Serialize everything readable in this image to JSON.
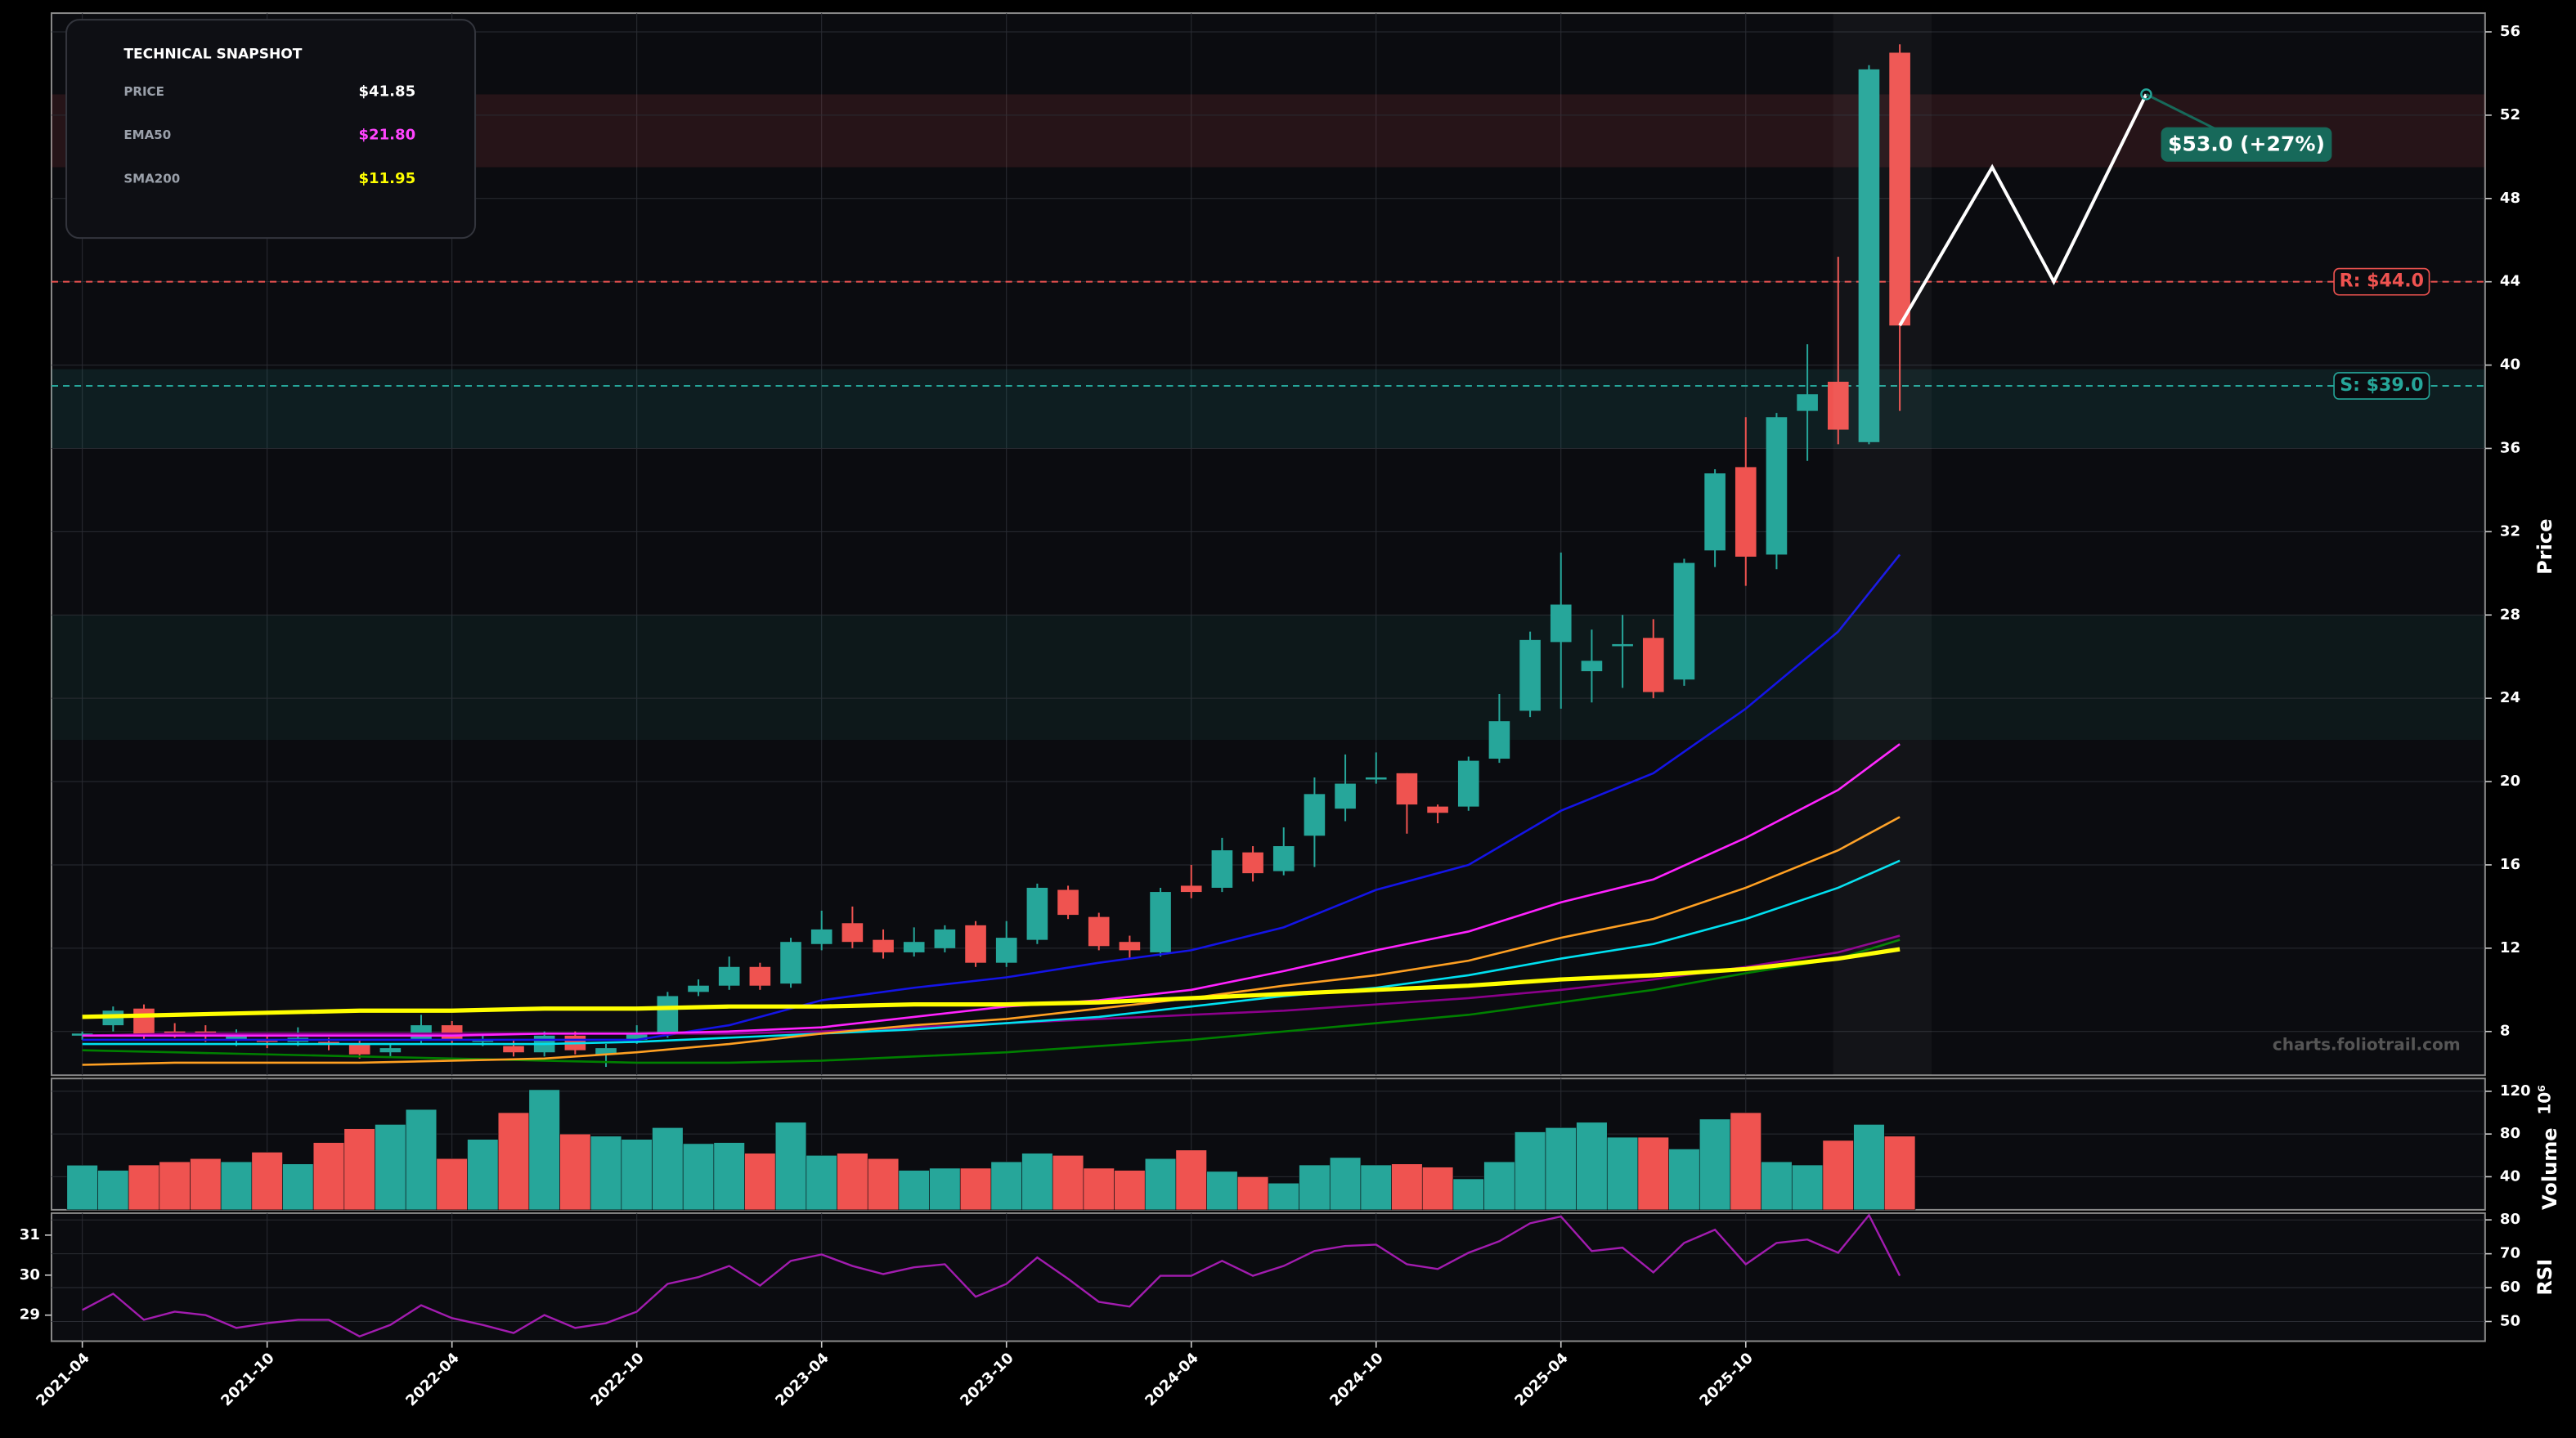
{
  "watermark": "charts.foliotrail.com",
  "snapshot": {
    "title": "TECHNICAL SNAPSHOT",
    "rows": [
      {
        "label": "PRICE",
        "value": "$41.85",
        "color": "#ffffff"
      },
      {
        "label": "EMA50",
        "value": "$21.80",
        "color": "#ff44ff"
      },
      {
        "label": "SMA200",
        "value": "$11.95",
        "color": "#ffff00"
      }
    ]
  },
  "chart_data": [
    {
      "type": "candlestick",
      "ylabel": "Price",
      "grid": true,
      "up_color": "#26a69a",
      "down_color": "#ef5350",
      "xlim": [
        "2021-03",
        "2027-10"
      ],
      "ylim": [
        5.9,
        56.9
      ],
      "yticks": [
        8,
        12,
        16,
        20,
        24,
        28,
        32,
        36,
        40,
        44,
        48,
        52,
        56
      ],
      "x": [
        "2021-04",
        "2021-05",
        "2021-06",
        "2021-07",
        "2021-08",
        "2021-09",
        "2021-10",
        "2021-11",
        "2021-12",
        "2022-01",
        "2022-02",
        "2022-03",
        "2022-04",
        "2022-05",
        "2022-06",
        "2022-07",
        "2022-08",
        "2022-09",
        "2022-10",
        "2022-11",
        "2022-12",
        "2023-01",
        "2023-02",
        "2023-03",
        "2023-04",
        "2023-05",
        "2023-06",
        "2023-07",
        "2023-08",
        "2023-09",
        "2023-10",
        "2023-11",
        "2023-12",
        "2024-01",
        "2024-02",
        "2024-03",
        "2024-04",
        "2024-05",
        "2024-06",
        "2024-07",
        "2024-08",
        "2024-09",
        "2024-10",
        "2024-11",
        "2024-12",
        "2025-01",
        "2025-02",
        "2025-03",
        "2025-04",
        "2025-05",
        "2025-06",
        "2025-07",
        "2025-08",
        "2025-09",
        "2025-10",
        "2025-11",
        "2025-12",
        "2026-01",
        "2026-02",
        "2026-03"
      ],
      "open": [
        7.8,
        8.3,
        9.1,
        8.0,
        8.0,
        7.6,
        7.6,
        7.5,
        7.5,
        7.4,
        7.0,
        7.6,
        8.3,
        7.5,
        7.3,
        7.0,
        7.8,
        6.9,
        7.6,
        7.9,
        9.9,
        10.2,
        11.1,
        10.3,
        12.2,
        13.2,
        12.4,
        11.8,
        12.0,
        13.1,
        11.3,
        12.4,
        14.8,
        13.5,
        12.3,
        11.8,
        15.0,
        14.9,
        16.6,
        15.7,
        17.4,
        18.7,
        20.1,
        20.4,
        18.8,
        18.8,
        21.1,
        23.4,
        26.7,
        25.3,
        26.5,
        26.9,
        24.9,
        31.1,
        35.1,
        30.9,
        37.8,
        39.2,
        36.3,
        55.0
      ],
      "high": [
        8.0,
        9.2,
        9.3,
        8.4,
        8.3,
        8.1,
        7.9,
        8.2,
        7.7,
        7.6,
        7.4,
        8.8,
        8.5,
        7.9,
        7.6,
        8.0,
        8.0,
        7.4,
        8.3,
        9.9,
        10.5,
        11.6,
        11.3,
        12.5,
        13.8,
        14.0,
        12.9,
        13.0,
        13.1,
        13.3,
        13.3,
        15.1,
        15.0,
        13.7,
        12.6,
        14.9,
        16.0,
        17.3,
        16.9,
        17.8,
        20.2,
        21.3,
        21.4,
        20.4,
        18.9,
        21.2,
        24.2,
        27.2,
        31.0,
        27.3,
        28.0,
        27.8,
        30.7,
        35.0,
        37.5,
        37.7,
        41.0,
        45.2,
        54.4,
        55.4
      ],
      "low": [
        7.6,
        8.0,
        7.6,
        7.7,
        7.5,
        7.3,
        7.2,
        7.3,
        7.1,
        6.7,
        6.8,
        7.4,
        7.4,
        7.3,
        6.8,
        6.8,
        6.9,
        6.3,
        7.4,
        7.7,
        9.7,
        10.0,
        10.0,
        10.1,
        11.9,
        12.0,
        11.5,
        11.6,
        11.8,
        11.1,
        11.1,
        12.2,
        13.4,
        11.9,
        11.5,
        11.6,
        14.4,
        14.7,
        15.2,
        15.5,
        15.9,
        18.1,
        19.9,
        17.5,
        18.0,
        18.6,
        20.9,
        23.1,
        23.5,
        23.8,
        24.5,
        24.0,
        24.6,
        30.3,
        29.4,
        30.2,
        35.4,
        36.2,
        36.2,
        37.8
      ],
      "close": [
        7.9,
        9.0,
        7.8,
        7.9,
        7.8,
        7.8,
        7.5,
        7.7,
        7.4,
        6.9,
        7.2,
        8.3,
        7.6,
        7.6,
        7.0,
        7.8,
        7.1,
        7.2,
        7.9,
        9.7,
        10.2,
        11.1,
        10.2,
        12.3,
        12.9,
        12.3,
        11.8,
        12.3,
        12.9,
        11.3,
        12.5,
        14.9,
        13.6,
        12.1,
        11.9,
        14.7,
        14.7,
        16.7,
        15.6,
        16.9,
        19.4,
        19.9,
        20.2,
        18.9,
        18.5,
        21.0,
        22.9,
        26.8,
        28.5,
        25.8,
        26.6,
        24.3,
        30.5,
        34.8,
        30.8,
        37.5,
        38.6,
        36.9,
        54.2,
        41.9
      ],
      "overlay_x": [
        "2021-04",
        "2021-07",
        "2021-10",
        "2022-01",
        "2022-04",
        "2022-07",
        "2022-10",
        "2023-01",
        "2023-04",
        "2023-07",
        "2023-10",
        "2024-01",
        "2024-04",
        "2024-07",
        "2024-10",
        "2025-01",
        "2025-04",
        "2025-07",
        "2025-10",
        "2026-01",
        "2026-03"
      ],
      "overlays": [
        {
          "color": "#1414e6",
          "width": 1.3,
          "values": [
            7.6,
            7.6,
            7.6,
            7.6,
            7.6,
            7.6,
            7.6,
            8.3,
            9.5,
            10.1,
            10.6,
            11.3,
            11.9,
            13.0,
            14.8,
            16.0,
            18.6,
            20.4,
            23.5,
            27.2,
            30.9
          ]
        },
        {
          "color": "#8b008b",
          "width": 1.3,
          "values": [
            7.8,
            7.9,
            7.9,
            7.9,
            7.9,
            7.9,
            7.9,
            7.9,
            8.0,
            8.2,
            8.4,
            8.6,
            8.8,
            9.0,
            9.3,
            9.6,
            10.0,
            10.5,
            11.1,
            11.8,
            12.6
          ]
        },
        {
          "color": "#008000",
          "width": 1.3,
          "values": [
            7.1,
            7.0,
            6.9,
            6.8,
            6.7,
            6.6,
            6.5,
            6.5,
            6.6,
            6.8,
            7.0,
            7.3,
            7.6,
            8.0,
            8.4,
            8.8,
            9.4,
            10.0,
            10.8,
            11.5,
            12.4
          ]
        },
        {
          "color": "#00e0f0",
          "width": 1.3,
          "values": [
            7.4,
            7.4,
            7.4,
            7.4,
            7.4,
            7.4,
            7.5,
            7.7,
            7.9,
            8.1,
            8.4,
            8.7,
            9.2,
            9.7,
            10.1,
            10.7,
            11.5,
            12.2,
            13.4,
            14.9,
            16.2
          ]
        },
        {
          "color": "#ffa022",
          "width": 1.3,
          "values": [
            6.4,
            6.5,
            6.5,
            6.5,
            6.6,
            6.7,
            7.0,
            7.4,
            7.9,
            8.3,
            8.6,
            9.1,
            9.6,
            10.2,
            10.7,
            11.4,
            12.5,
            13.4,
            14.9,
            16.7,
            18.3
          ]
        },
        {
          "color": "#ff22ff",
          "width": 1.3,
          "values": [
            7.8,
            7.8,
            7.8,
            7.8,
            7.8,
            7.9,
            7.9,
            8.0,
            8.2,
            8.7,
            9.2,
            9.5,
            10.0,
            10.9,
            11.9,
            12.8,
            14.2,
            15.3,
            17.3,
            19.6,
            21.8
          ]
        },
        {
          "color": "#ffff00",
          "width": 2.6,
          "values": [
            8.7,
            8.8,
            8.9,
            9.0,
            9.0,
            9.1,
            9.1,
            9.2,
            9.2,
            9.3,
            9.3,
            9.4,
            9.6,
            9.8,
            10.0,
            10.2,
            10.5,
            10.7,
            11.0,
            11.5,
            11.95
          ]
        }
      ],
      "zones": [
        {
          "from": 49.5,
          "to": 53.0,
          "color": "rgba(239,83,80,0.12)"
        },
        {
          "from": 36.0,
          "to": 39.8,
          "color": "rgba(38,166,154,0.12)"
        },
        {
          "from": 22.0,
          "to": 28.0,
          "color": "rgba(38,166,154,0.08)"
        }
      ],
      "levels": [
        {
          "value": 44.0,
          "label": "R: $44.0",
          "color": "#ef5350"
        },
        {
          "value": 39.0,
          "label": "S: $39.0",
          "color": "#26a69a"
        }
      ],
      "projection": {
        "x": [
          "2026-03",
          "2026-06",
          "2026-08",
          "2026-11"
        ],
        "values": [
          41.9,
          49.5,
          44.0,
          53.0
        ],
        "color": "#ffffff",
        "label": "$53.0 (+27%)",
        "label_color": "#17695a"
      }
    },
    {
      "type": "bar",
      "ylabel": "Volume",
      "offset_label": "10⁶",
      "grid": true,
      "up_color": "#26a69a",
      "down_color": "#ef5350",
      "xlim": [
        "2021-03",
        "2027-10"
      ],
      "ylim": [
        9,
        132
      ],
      "yticks": [
        40,
        80,
        120
      ],
      "x": [
        "2021-04",
        "2021-05",
        "2021-06",
        "2021-07",
        "2021-08",
        "2021-09",
        "2021-10",
        "2021-11",
        "2021-12",
        "2022-01",
        "2022-02",
        "2022-03",
        "2022-04",
        "2022-05",
        "2022-06",
        "2022-07",
        "2022-08",
        "2022-09",
        "2022-10",
        "2022-11",
        "2022-12",
        "2023-01",
        "2023-02",
        "2023-03",
        "2023-04",
        "2023-05",
        "2023-06",
        "2023-07",
        "2023-08",
        "2023-09",
        "2023-10",
        "2023-11",
        "2023-12",
        "2024-01",
        "2024-02",
        "2024-03",
        "2024-04",
        "2024-05",
        "2024-06",
        "2024-07",
        "2024-08",
        "2024-09",
        "2024-10",
        "2024-11",
        "2024-12",
        "2025-01",
        "2025-02",
        "2025-03",
        "2025-04",
        "2025-05",
        "2025-06",
        "2025-07",
        "2025-08",
        "2025-09",
        "2025-10",
        "2025-11",
        "2025-12",
        "2026-01",
        "2026-02",
        "2026-03"
      ],
      "values": [
        50.8,
        46,
        51,
        54,
        57,
        54,
        63,
        52,
        72,
        85,
        89,
        103,
        57,
        75,
        100,
        121.5,
        80,
        78,
        75,
        86,
        71,
        72,
        62,
        91,
        60,
        62,
        57,
        46,
        48,
        48,
        54,
        62,
        60,
        48,
        46,
        57,
        65,
        45,
        40,
        34,
        51,
        58,
        51,
        52,
        49,
        38,
        54,
        82,
        86,
        91,
        77,
        77,
        66,
        94,
        100,
        54,
        51,
        74,
        89,
        78
      ]
    },
    {
      "type": "line",
      "ylabel": "RSI",
      "grid": true,
      "color": "#a21caf",
      "axis": "y2",
      "xlim": [
        "2021-03",
        "2027-10"
      ],
      "xticks": [
        "2021-04",
        "2021-10",
        "2022-04",
        "2022-10",
        "2023-04",
        "2023-10",
        "2024-04",
        "2024-10",
        "2025-04",
        "2025-10"
      ],
      "ylim": [
        28.35,
        31.55
      ],
      "yticks": [
        29,
        30,
        31
      ],
      "y2lim": [
        44.2,
        82
      ],
      "y2ticks": [
        50,
        60,
        70,
        80
      ],
      "x": [
        "2021-04",
        "2021-05",
        "2021-06",
        "2021-07",
        "2021-08",
        "2021-09",
        "2021-10",
        "2021-11",
        "2021-12",
        "2022-01",
        "2022-02",
        "2022-03",
        "2022-04",
        "2022-05",
        "2022-06",
        "2022-07",
        "2022-08",
        "2022-09",
        "2022-10",
        "2022-11",
        "2022-12",
        "2023-01",
        "2023-02",
        "2023-03",
        "2023-04",
        "2023-05",
        "2023-06",
        "2023-07",
        "2023-08",
        "2023-09",
        "2023-10",
        "2023-11",
        "2023-12",
        "2024-01",
        "2024-02",
        "2024-03",
        "2024-04",
        "2024-05",
        "2024-06",
        "2024-07",
        "2024-08",
        "2024-09",
        "2024-10",
        "2024-11",
        "2024-12",
        "2025-01",
        "2025-02",
        "2025-03",
        "2025-04",
        "2025-05",
        "2025-06",
        "2025-07",
        "2025-08",
        "2025-09",
        "2025-10",
        "2025-11",
        "2025-12",
        "2026-01",
        "2026-02",
        "2026-03"
      ],
      "values": [
        53.4,
        58.2,
        50.5,
        52.9,
        51.9,
        48.1,
        49.5,
        50.5,
        50.5,
        45.6,
        49,
        54.8,
        51,
        49,
        46.6,
        51.9,
        48.1,
        49.5,
        52.9,
        61.1,
        63.1,
        66.4,
        60.6,
        67.9,
        69.8,
        66.4,
        64,
        66,
        66.9,
        57.3,
        61.1,
        68.9,
        62.6,
        55.8,
        54.4,
        63.5,
        63.5,
        67.9,
        63.5,
        66.4,
        70.8,
        72.3,
        72.7,
        66.9,
        65.5,
        70.3,
        73.7,
        79,
        81,
        70.8,
        71.8,
        64.5,
        73.2,
        77.1,
        66.9,
        73.2,
        74.2,
        70.3,
        81.4,
        63.5
      ]
    }
  ]
}
